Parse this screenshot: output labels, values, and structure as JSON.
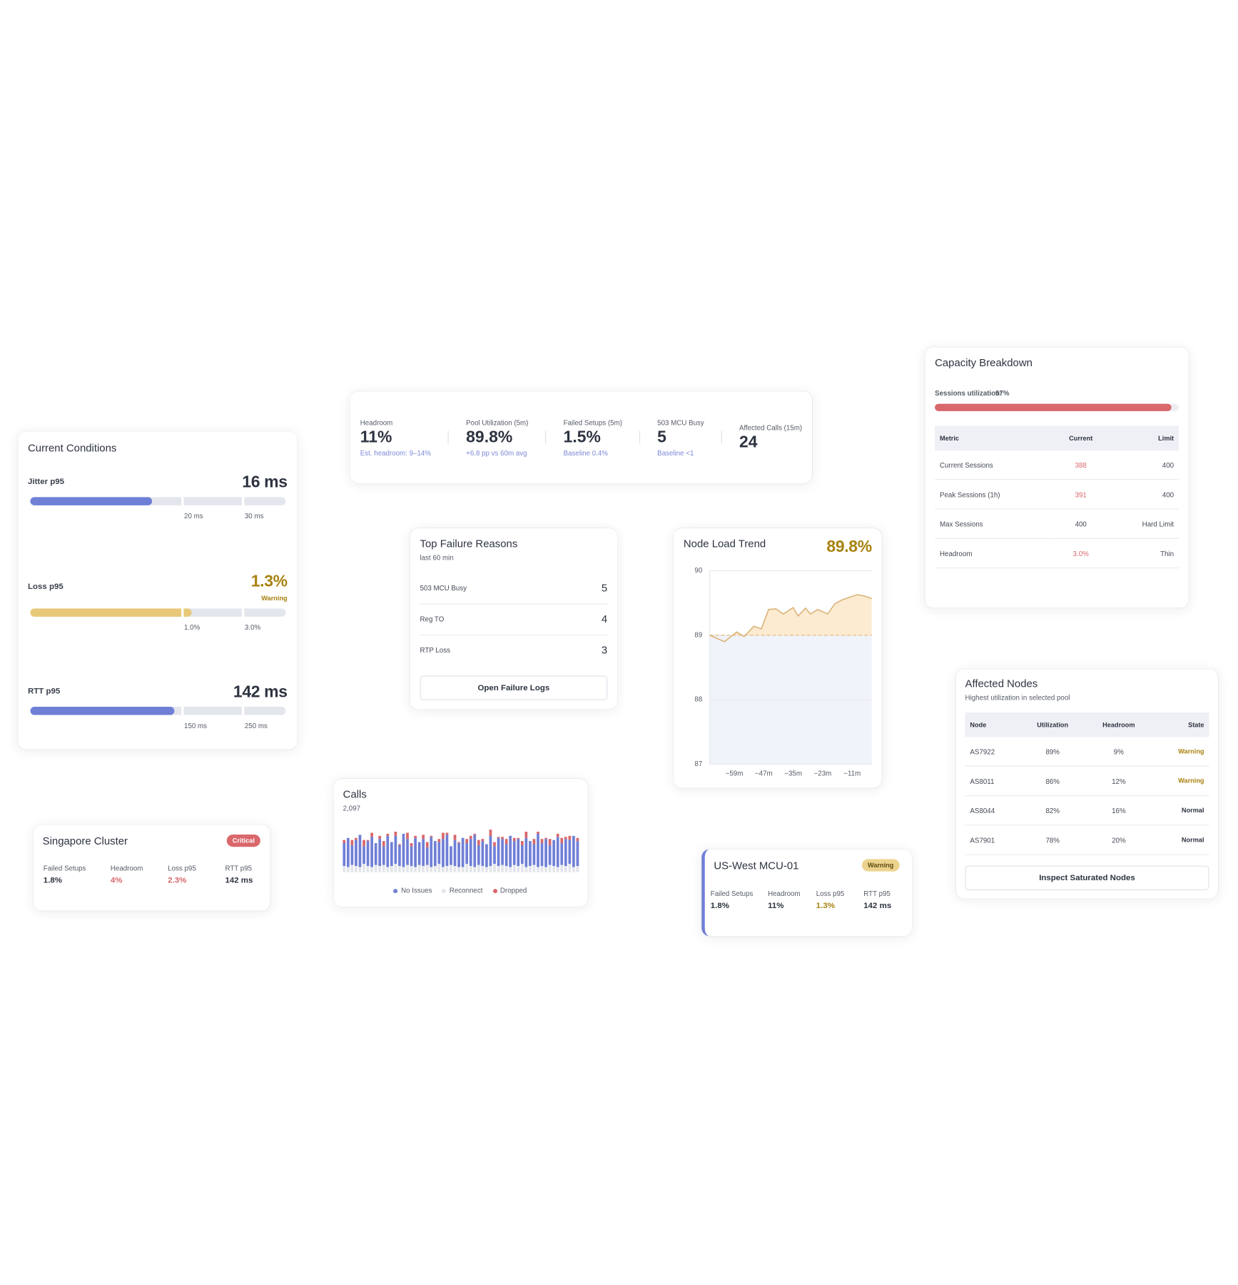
{
  "current_conditions": {
    "title": "Current Conditions",
    "metrics": [
      {
        "label": "Jitter p95",
        "value": 16,
        "value_label": "16 ms",
        "color": "#6f7fd6",
        "thresholds": [
          {
            "value": 20,
            "label": "20 ms"
          },
          {
            "value": 30,
            "label": "30 ms"
          }
        ]
      },
      {
        "label": "Loss p95",
        "value": 1.3,
        "value_label": "1.3%",
        "status": "Warning",
        "color": "#e8c97a",
        "thresholds": [
          {
            "value": 1.0,
            "label": "1.0%"
          },
          {
            "value": 3.0,
            "label": "3.0%"
          }
        ]
      },
      {
        "label": "RTT p95",
        "value": 142,
        "value_label": "142 ms",
        "color": "#6f7fd6",
        "thresholds": [
          {
            "value": 150,
            "label": "150 ms"
          },
          {
            "value": 250,
            "label": "250 ms"
          }
        ]
      }
    ]
  },
  "kpis": [
    {
      "label": "Headroom",
      "value": "11%",
      "note": "Est. headroom: 9–14%"
    },
    {
      "label": "Pool Utilization (5m)",
      "value": "89.8%",
      "note": "+6.8 pp vs 60m avg"
    },
    {
      "label": "Failed Setups (5m)",
      "value": "1.5%",
      "note": "Baseline 0.4%"
    },
    {
      "label": "503 MCU Busy",
      "value": "5",
      "note": "Baseline <1"
    },
    {
      "label": "Affected Calls (15m)",
      "value": "24"
    }
  ],
  "failure_reasons": {
    "title": "Top Failure Reasons",
    "subtitle": "last 60 min",
    "items": [
      {
        "label": "503 MCU Busy",
        "count": 5
      },
      {
        "label": "Reg TO",
        "count": 4
      },
      {
        "label": "RTP Loss",
        "count": 3
      }
    ],
    "button": "Open Failure Logs"
  },
  "node_load": {
    "title": "Node Load Trend",
    "current": "89.8%",
    "chart": {
      "type": "line",
      "x": [
        -69,
        -63,
        -58,
        -55,
        -51,
        -48,
        -45,
        -42,
        -39,
        -35,
        -33,
        -30,
        -28,
        -25,
        -21,
        -18,
        -15,
        -9,
        -6,
        -3
      ],
      "values": [
        89.0,
        88.9,
        89.05,
        88.98,
        89.14,
        89.1,
        89.4,
        89.41,
        89.33,
        89.43,
        89.3,
        89.42,
        89.33,
        89.4,
        89.33,
        89.49,
        89.55,
        89.63,
        89.61,
        89.57
      ],
      "color": "#dcb77f",
      "reference": 89,
      "xlim": [
        -69,
        -3
      ],
      "ylim": [
        87,
        90
      ],
      "yticks": [
        87,
        88,
        89,
        90
      ],
      "xticks": [
        {
          "value": -59,
          "label": "−59m"
        },
        {
          "value": -47,
          "label": "−47m"
        },
        {
          "value": -35,
          "label": "−35m"
        },
        {
          "value": -23,
          "label": "−23m"
        },
        {
          "value": -11,
          "label": "−11m"
        }
      ],
      "grid": true
    }
  },
  "calls": {
    "title": "Calls",
    "total": "2,097",
    "chart": {
      "type": "bar",
      "stacked": true,
      "series": [
        {
          "name": "No Issues",
          "color": "#6f7fd6",
          "values": [
            22,
            28,
            19,
            25,
            31,
            17,
            24,
            29,
            21,
            26,
            18,
            30,
            23,
            27,
            20,
            32,
            25,
            19,
            28,
            22,
            26,
            17,
            29,
            24,
            21,
            27,
            30,
            18,
            25,
            23,
            28,
            20,
            26,
            31,
            19,
            24,
            22,
            29,
            17,
            27,
            25,
            21,
            30,
            23,
            26,
            18,
            28,
            24,
            20,
            32,
            22,
            27,
            19,
            25,
            29,
            21,
            26,
            23,
            30,
            24
          ]
        },
        {
          "name": "Reconnect",
          "color": "#e3e5ea",
          "values": [
            6,
            5,
            7,
            6,
            5,
            8,
            6,
            5,
            7,
            6,
            7,
            5,
            6,
            8,
            6,
            5,
            7,
            6,
            5,
            7,
            6,
            7,
            5,
            6,
            8,
            5,
            6,
            7,
            6,
            5,
            5,
            8,
            6,
            5,
            7,
            6,
            5,
            6,
            8,
            6,
            7,
            6,
            5,
            7,
            6,
            8,
            5,
            6,
            7,
            5,
            6,
            5,
            7,
            6,
            5,
            7,
            6,
            8,
            5,
            6
          ]
        },
        {
          "name": "Dropped",
          "color": "#d9676b",
          "values": [
            3,
            0,
            5,
            2,
            0,
            6,
            1,
            4,
            0,
            3,
            5,
            2,
            0,
            4,
            1,
            0,
            6,
            3,
            2,
            0,
            4,
            5,
            1,
            0,
            3,
            6,
            2,
            0,
            5,
            1,
            0,
            4,
            3,
            1,
            5,
            2,
            0,
            6,
            4,
            1,
            2,
            5,
            0,
            3,
            1,
            4,
            6,
            0,
            5,
            2,
            4,
            1,
            6,
            0,
            3,
            5,
            2,
            4,
            0,
            3
          ]
        }
      ]
    }
  },
  "singapore": {
    "title": "Singapore Cluster",
    "badge": "Critical",
    "metrics": [
      {
        "label": "Failed Setups",
        "value": "1.8%"
      },
      {
        "label": "Headroom",
        "value": "4%",
        "color": "#d9676b"
      },
      {
        "label": "Loss p95",
        "value": "2.3%",
        "color": "#d9676b"
      },
      {
        "label": "RTT p95",
        "value": "142 ms"
      }
    ]
  },
  "us_west": {
    "title": "US-West MCU-01",
    "badge": "Warning",
    "metrics": [
      {
        "label": "Failed Setups",
        "value": "1.8%"
      },
      {
        "label": "Headroom",
        "value": "11%"
      },
      {
        "label": "Loss p95",
        "value": "1.3%",
        "color": "#a8820f"
      },
      {
        "label": "RTT p95",
        "value": "142 ms"
      }
    ]
  },
  "capacity": {
    "title": "Capacity Breakdown",
    "utilization_label": "Sessions utilization:",
    "utilization": 97,
    "utilization_text": "97%",
    "color": "#d9676b",
    "table": {
      "header": [
        "Metric",
        "Current",
        "Limit"
      ],
      "rows": [
        [
          "Current Sessions",
          "388",
          "400"
        ],
        [
          "Peak Sessions (1h)",
          "391",
          "400"
        ],
        [
          "Max Sessions",
          "400",
          "Hard Limit"
        ],
        [
          "Headroom",
          "3.0%",
          "Thin"
        ]
      ]
    }
  },
  "affected_nodes": {
    "title": "Affected Nodes",
    "subtitle": "Highest utilization in selected pool",
    "table": {
      "header": [
        "Node",
        "Utilization",
        "Headroom",
        "State"
      ],
      "rows": [
        [
          "AS7922",
          "89%",
          "9%",
          "Warning"
        ],
        [
          "AS8011",
          "86%",
          "12%",
          "Warning"
        ],
        [
          "AS8044",
          "82%",
          "16%",
          "Normal"
        ],
        [
          "AS7901",
          "78%",
          "20%",
          "Normal"
        ]
      ]
    },
    "button": "Inspect Saturated Nodes"
  }
}
